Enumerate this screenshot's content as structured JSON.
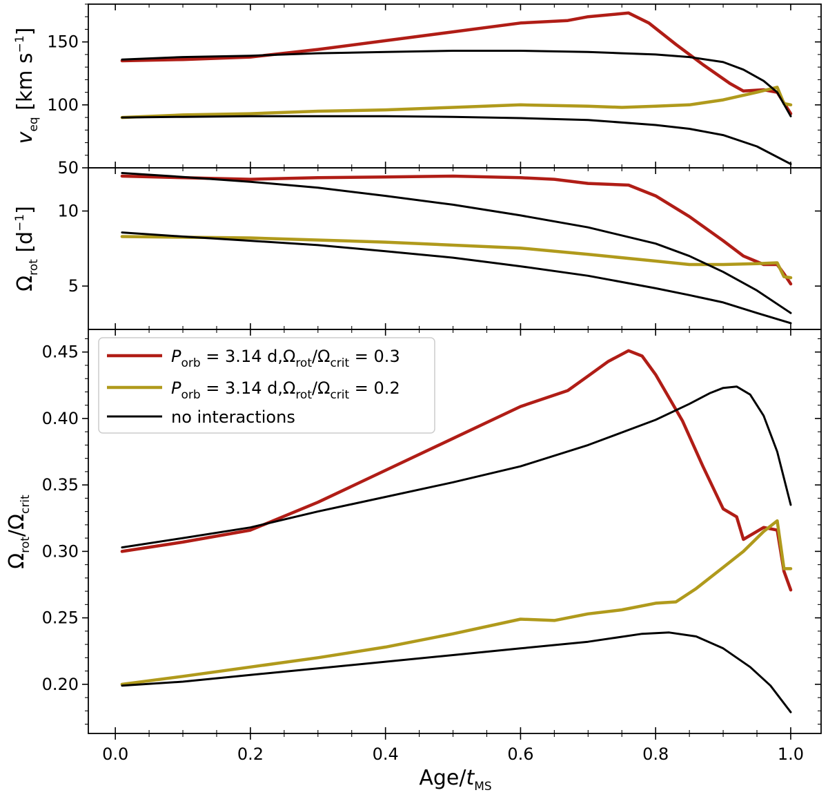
{
  "colors": {
    "red": "#b01d16",
    "gold": "#b09a1c",
    "black": "#000000"
  },
  "chart_data": [
    {
      "type": "line",
      "panel": "top",
      "ylabel": {
        "main": "v",
        "sub": "eq",
        "unit_pre": " [km s",
        "unit_sup": "−1",
        "unit_post": "]"
      },
      "xlim": [
        -0.04,
        1.045
      ],
      "ylim": [
        50,
        180
      ],
      "yticks": [
        50,
        100,
        150
      ],
      "xticks": [
        0.0,
        0.2,
        0.4,
        0.6,
        0.8,
        1.0
      ],
      "series": [
        {
          "id": "red",
          "color": "#b01d16",
          "width": 4.5,
          "x": [
            0.01,
            0.1,
            0.2,
            0.3,
            0.4,
            0.5,
            0.6,
            0.67,
            0.7,
            0.76,
            0.79,
            0.83,
            0.87,
            0.91,
            0.93,
            0.96,
            0.98,
            1.0
          ],
          "y": [
            135,
            136,
            138,
            144,
            151,
            158,
            165,
            167,
            170,
            173,
            165,
            148,
            132,
            117,
            111,
            112,
            110,
            93
          ]
        },
        {
          "id": "gold",
          "color": "#b09a1c",
          "width": 4.5,
          "x": [
            0.01,
            0.1,
            0.2,
            0.3,
            0.4,
            0.5,
            0.6,
            0.7,
            0.75,
            0.8,
            0.85,
            0.9,
            0.95,
            0.98,
            0.99,
            1.0
          ],
          "y": [
            90,
            92,
            93,
            95,
            96,
            98,
            100,
            99,
            98,
            99,
            100,
            104,
            110,
            114,
            101,
            100
          ]
        },
        {
          "id": "black-1",
          "color": "#000000",
          "width": 3,
          "x": [
            0.01,
            0.1,
            0.2,
            0.3,
            0.4,
            0.5,
            0.6,
            0.7,
            0.75,
            0.8,
            0.85,
            0.9,
            0.93,
            0.96,
            0.98,
            1.0
          ],
          "y": [
            136,
            138,
            139,
            141,
            142,
            143,
            143,
            142,
            141,
            140,
            138,
            134,
            128,
            119,
            110,
            91
          ]
        },
        {
          "id": "black-2",
          "color": "#000000",
          "width": 3,
          "x": [
            0.01,
            0.1,
            0.2,
            0.3,
            0.4,
            0.5,
            0.6,
            0.7,
            0.8,
            0.85,
            0.9,
            0.95,
            1.0
          ],
          "y": [
            90,
            90.5,
            91,
            91,
            91,
            90.5,
            89.5,
            88,
            84,
            81,
            76,
            67,
            53
          ]
        }
      ]
    },
    {
      "type": "line",
      "panel": "middle",
      "yscale": "log",
      "ylabel": {
        "main": "Ω",
        "sub": "rot",
        "unit_pre": " [d",
        "unit_sup": "−1",
        "unit_post": "]"
      },
      "xlim": [
        -0.04,
        1.045
      ],
      "ylim": [
        3.35,
        14.9
      ],
      "yticks": [
        5,
        10
      ],
      "xticks": [
        0.0,
        0.2,
        0.4,
        0.6,
        0.8,
        1.0
      ],
      "series": [
        {
          "id": "red",
          "color": "#b01d16",
          "width": 4.5,
          "x": [
            0.01,
            0.1,
            0.2,
            0.3,
            0.4,
            0.5,
            0.6,
            0.65,
            0.7,
            0.76,
            0.8,
            0.85,
            0.9,
            0.93,
            0.96,
            0.98,
            0.99,
            1.0
          ],
          "y": [
            13.8,
            13.6,
            13.4,
            13.6,
            13.7,
            13.8,
            13.6,
            13.4,
            12.9,
            12.7,
            11.5,
            9.5,
            7.6,
            6.6,
            6.1,
            6.1,
            5.6,
            5.1
          ]
        },
        {
          "id": "gold",
          "color": "#b09a1c",
          "width": 4.5,
          "x": [
            0.01,
            0.2,
            0.4,
            0.6,
            0.7,
            0.8,
            0.85,
            0.9,
            0.95,
            0.98,
            0.99,
            1.0
          ],
          "y": [
            7.9,
            7.8,
            7.5,
            7.1,
            6.7,
            6.3,
            6.1,
            6.1,
            6.15,
            6.2,
            5.45,
            5.4
          ]
        },
        {
          "id": "black-1",
          "color": "#000000",
          "width": 3,
          "x": [
            0.01,
            0.1,
            0.2,
            0.3,
            0.4,
            0.5,
            0.6,
            0.7,
            0.8,
            0.85,
            0.9,
            0.95,
            1.0
          ],
          "y": [
            14.2,
            13.7,
            13.1,
            12.4,
            11.5,
            10.6,
            9.6,
            8.6,
            7.4,
            6.6,
            5.7,
            4.8,
            3.9
          ]
        },
        {
          "id": "black-2",
          "color": "#000000",
          "width": 3,
          "x": [
            0.01,
            0.1,
            0.2,
            0.3,
            0.4,
            0.5,
            0.6,
            0.7,
            0.8,
            0.85,
            0.9,
            0.95,
            1.0
          ],
          "y": [
            8.2,
            7.9,
            7.6,
            7.3,
            6.9,
            6.5,
            6.0,
            5.5,
            4.9,
            4.6,
            4.3,
            3.9,
            3.55
          ]
        }
      ]
    },
    {
      "type": "line",
      "panel": "bottom",
      "ylabel": {
        "main": "Ω",
        "sub": "rot",
        "mid": "/Ω",
        "sub2": "crit"
      },
      "xlabel": {
        "main": "Age/",
        "italic": "t",
        "sub": "MS"
      },
      "xlim": [
        -0.04,
        1.045
      ],
      "ylim": [
        0.163,
        0.467
      ],
      "yticks": [
        0.2,
        0.25,
        0.3,
        0.35,
        0.4,
        0.45
      ],
      "ytick_labels": [
        "0.20",
        "0.25",
        "0.30",
        "0.35",
        "0.40",
        "0.45"
      ],
      "xticks": [
        0.0,
        0.2,
        0.4,
        0.6,
        0.8,
        1.0
      ],
      "xtick_labels": [
        "0.0",
        "0.2",
        "0.4",
        "0.6",
        "0.8",
        "1.0"
      ],
      "series": [
        {
          "id": "red",
          "color": "#b01d16",
          "width": 4.5,
          "x": [
            0.01,
            0.1,
            0.2,
            0.3,
            0.4,
            0.5,
            0.6,
            0.67,
            0.7,
            0.73,
            0.76,
            0.78,
            0.8,
            0.84,
            0.87,
            0.9,
            0.92,
            0.93,
            0.96,
            0.98,
            0.99,
            1.0
          ],
          "y": [
            0.3,
            0.307,
            0.316,
            0.337,
            0.361,
            0.385,
            0.409,
            0.421,
            0.432,
            0.443,
            0.451,
            0.447,
            0.433,
            0.398,
            0.364,
            0.332,
            0.326,
            0.309,
            0.318,
            0.316,
            0.285,
            0.271
          ]
        },
        {
          "id": "gold",
          "color": "#b09a1c",
          "width": 4.5,
          "x": [
            0.01,
            0.1,
            0.2,
            0.3,
            0.4,
            0.5,
            0.6,
            0.65,
            0.7,
            0.75,
            0.8,
            0.83,
            0.86,
            0.9,
            0.93,
            0.96,
            0.98,
            0.99,
            1.0
          ],
          "y": [
            0.2,
            0.206,
            0.213,
            0.22,
            0.228,
            0.238,
            0.249,
            0.248,
            0.253,
            0.256,
            0.261,
            0.262,
            0.272,
            0.288,
            0.3,
            0.315,
            0.323,
            0.287,
            0.287
          ]
        },
        {
          "id": "black-1",
          "color": "#000000",
          "width": 3,
          "x": [
            0.01,
            0.1,
            0.2,
            0.3,
            0.4,
            0.5,
            0.6,
            0.7,
            0.8,
            0.85,
            0.88,
            0.9,
            0.92,
            0.94,
            0.96,
            0.98,
            1.0
          ],
          "y": [
            0.303,
            0.31,
            0.318,
            0.33,
            0.341,
            0.352,
            0.364,
            0.38,
            0.399,
            0.411,
            0.419,
            0.423,
            0.424,
            0.418,
            0.402,
            0.375,
            0.335
          ]
        },
        {
          "id": "black-2",
          "color": "#000000",
          "width": 3,
          "x": [
            0.01,
            0.1,
            0.2,
            0.3,
            0.4,
            0.5,
            0.6,
            0.7,
            0.78,
            0.82,
            0.86,
            0.9,
            0.94,
            0.97,
            1.0
          ],
          "y": [
            0.199,
            0.202,
            0.207,
            0.212,
            0.217,
            0.222,
            0.227,
            0.232,
            0.238,
            0.239,
            0.236,
            0.227,
            0.213,
            0.199,
            0.179
          ]
        }
      ],
      "legend": {
        "placement": "upper-left",
        "entries": [
          {
            "color": "#b01d16",
            "label_P": "P",
            "label_P_sub": "orb",
            "label_mid": " = 3.14 d,Ω",
            "label_sub1": "rot",
            "label_slash": "/Ω",
            "label_sub2": "crit",
            "label_end": " = 0.3"
          },
          {
            "color": "#b09a1c",
            "label_P": "P",
            "label_P_sub": "orb",
            "label_mid": " = 3.14 d,Ω",
            "label_sub1": "rot",
            "label_slash": "/Ω",
            "label_sub2": "crit",
            "label_end": " = 0.2"
          },
          {
            "color": "#000000",
            "label": "no interactions"
          }
        ]
      }
    }
  ]
}
